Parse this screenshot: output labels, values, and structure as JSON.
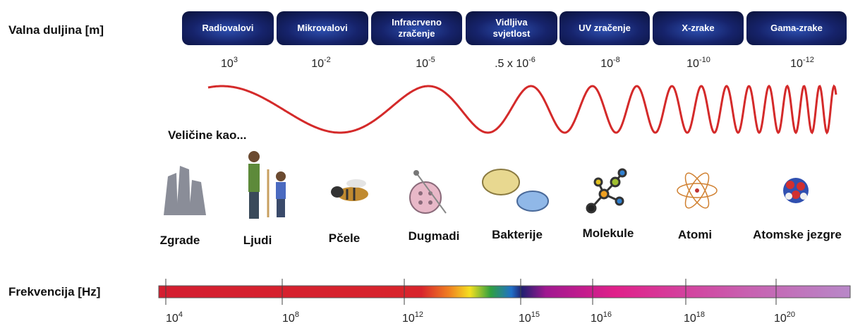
{
  "row_labels": {
    "wavelength": "Valna duljina [m]",
    "sizes": "Veličine kao...",
    "frequency": "Frekvencija [Hz]"
  },
  "bands": [
    [
      "Radiovalovi"
    ],
    [
      "Mikrovalovi"
    ],
    [
      "Infracrveno",
      "zračenje"
    ],
    [
      "Vidljiva",
      "svjetlost"
    ],
    [
      "UV zračenje"
    ],
    [
      "X-zrake"
    ],
    [
      "Gama-zrake"
    ]
  ],
  "wavelengths": [
    {
      "base": "10",
      "exponent": "3"
    },
    {
      "base": "10",
      "exponent": "-2"
    },
    {
      "base": "10",
      "exponent": "-5"
    },
    {
      "base": ".5 x 10",
      "exponent": "-6"
    },
    {
      "base": "10",
      "exponent": "-8"
    },
    {
      "base": "10",
      "exponent": "-10"
    },
    {
      "base": "10",
      "exponent": "-12"
    }
  ],
  "objects": [
    "Zgrade",
    "Ljudi",
    "Pčele",
    "Dugmadi",
    "Bakterije",
    "Molekule",
    "Atomi",
    "Atomske jezgre"
  ],
  "frequencies": [
    {
      "base": "10",
      "exponent": "4"
    },
    {
      "base": "10",
      "exponent": "8"
    },
    {
      "base": "10",
      "exponent": "12"
    },
    {
      "base": "10",
      "exponent": "15"
    },
    {
      "base": "10",
      "exponent": "16"
    },
    {
      "base": "10",
      "exponent": "18"
    },
    {
      "base": "10",
      "exponent": "20"
    }
  ]
}
